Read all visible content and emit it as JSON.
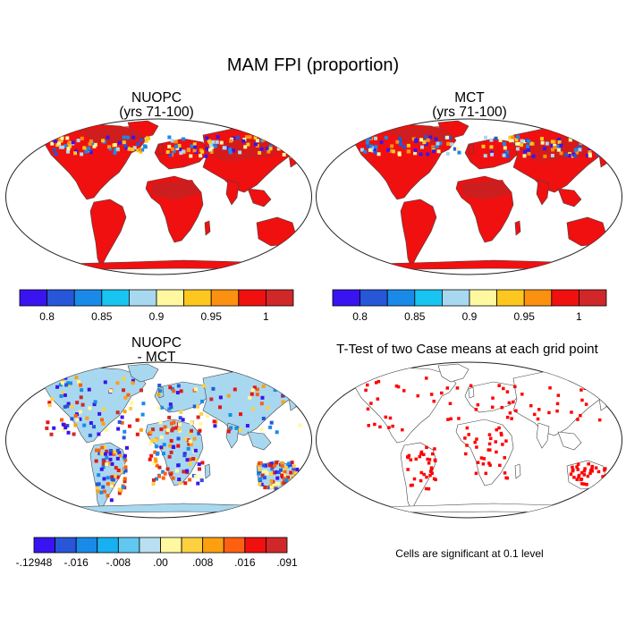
{
  "title": "MAM FPI (proportion)",
  "panels": [
    {
      "id": "nuopc",
      "title_line1": "NUOPC",
      "title_line2": "(yrs 71-100)"
    },
    {
      "id": "mct",
      "title_line1": "MCT",
      "title_line2": "(yrs 71-100)"
    },
    {
      "id": "diff",
      "title_line1": "NUOPC",
      "title_line2": "- MCT"
    },
    {
      "id": "ttest",
      "title_line1": "T-Test of two Case means at each grid point"
    }
  ],
  "colorbar_abs": {
    "colors": [
      "#3a14f0",
      "#2756d8",
      "#1a8ae8",
      "#18c4f0",
      "#a8d8f0",
      "#fff8a0",
      "#fcc820",
      "#fc9010",
      "#f01010",
      "#d02828"
    ],
    "labels": [
      "0.8",
      "0.85",
      "0.9",
      "0.95",
      "1"
    ]
  },
  "colorbar_diff": {
    "colors": [
      "#3a14f0",
      "#2756d8",
      "#1a8ae8",
      "#18b0f0",
      "#60c8f0",
      "#b8e0f0",
      "#fff8a0",
      "#fcd040",
      "#fca010",
      "#fc6010",
      "#f01010",
      "#d02828"
    ],
    "labels": [
      "-.12948",
      "-.016",
      "-.008",
      ".00",
      ".008",
      ".016",
      ".091"
    ]
  },
  "significance_note": "Cells are significant at 0.1 level",
  "colors": {
    "fill_red": "#f01010",
    "fill_darkred": "#c82020",
    "fill_blue": "#3a14f0",
    "fill_lightblue": "#a8d8f0",
    "fill_yellow": "#fff8a0",
    "sig_red": "#ff0000"
  }
}
